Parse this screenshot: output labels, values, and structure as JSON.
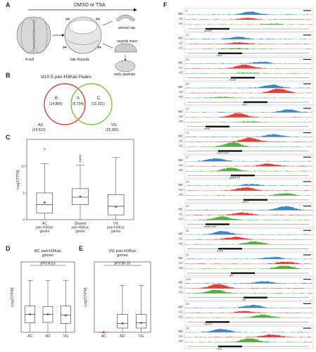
{
  "panels": {
    "A": {
      "letter": "A",
      "treatment": "DMSO or TSA",
      "stage": "4-cell",
      "late_blastula": "late blastula",
      "animal_cap": "animal cap",
      "vegetal_mass": "vegetal mass",
      "early_gastrula": "early gastrula"
    },
    "B": {
      "letter": "B",
      "title": "st10.5 pan-H3Kac Peaks",
      "left_circle": {
        "region_label": "B",
        "region_count": "(14,889)",
        "set_label": "AC",
        "set_total": "(24,613)",
        "color": "#e0413b"
      },
      "overlap": {
        "region_label": "A",
        "region_count": "(9,724)"
      },
      "right_circle": {
        "region_label": "C",
        "region_count": "(15,331)",
        "set_label": "VG",
        "set_total": "(25,055)",
        "color": "#7fc241"
      }
    },
    "C": {
      "letter": "C"
    },
    "D": {
      "letter": "D",
      "pvalue": "p=0.5013"
    },
    "E": {
      "letter": "E",
      "pvalue": "p=3.8e-15"
    },
    "F": {
      "letter": "F",
      "track_colors": {
        "WE": "#3f88c5",
        "AC": "#e0413b",
        "VG": "#55b043"
      },
      "tracks": [
        "WE",
        "AC",
        "VG"
      ],
      "loci": [
        {
          "num": "5",
          "gene": "pou5f3"
        },
        {
          "num": "27",
          "gene": "sox2"
        },
        {
          "num": "29",
          "gene": "foxa4"
        },
        {
          "num": "45",
          "gene": "otx2"
        },
        {
          "num": "23",
          "gene": "ventx"
        },
        {
          "num": "71",
          "gene": "cdx4 exo9"
        },
        {
          "num": "21",
          "gene": "gata4 5 6"
        },
        {
          "num": "20",
          "gene": "sox17"
        },
        {
          "num": "32",
          "gene": "foxa2 mix1"
        },
        {
          "num": "34",
          "gene": "nodal"
        },
        {
          "num": "22",
          "gene": "gsc"
        },
        {
          "num": "125",
          "gene": "mix"
        },
        {
          "num": "39",
          "gene": "sox17a"
        },
        {
          "num": "16",
          "gene": "vegt"
        }
      ]
    }
  },
  "chart_data": [
    {
      "type": "box",
      "panel": "C",
      "ylabel": "Log2(TPM)",
      "ylim": [
        0,
        15
      ],
      "yticks": [
        0,
        5,
        10
      ],
      "categories": [
        "AC\npan-H3Kac\ngenes",
        "Shared\npan-H3Kac\ngenes",
        "VG\npan-H3Kac\ngenes"
      ],
      "boxes": [
        {
          "q1": 1.2,
          "median": 2.8,
          "q3": 5.0,
          "whisker_low": 0,
          "whisker_high": 10.5,
          "mean": 3.2,
          "outliers": [
            13.2
          ]
        },
        {
          "q1": 2.8,
          "median": 4.2,
          "q3": 5.8,
          "whisker_low": 0,
          "whisker_high": 10.2,
          "mean": 4.3,
          "outliers": [
            10.8,
            11.1,
            11.4,
            11.7,
            12.0
          ]
        },
        {
          "q1": 0.9,
          "median": 2.5,
          "q3": 4.7,
          "whisker_low": 0,
          "whisker_high": 11.6,
          "mean": 2.4,
          "outliers": []
        }
      ]
    },
    {
      "type": "box",
      "panel": "D",
      "title": "AC pan-H3Kac\ngenes",
      "ylabel": "Log2(TPM)",
      "ylim": [
        0,
        15
      ],
      "categories": [
        "AC",
        "MZ",
        "VG"
      ],
      "boxes": [
        {
          "q1": 2.0,
          "median": 3.8,
          "q3": 5.6,
          "whisker_low": 0,
          "whisker_high": 11.0,
          "mean": 3.8
        },
        {
          "q1": 2.1,
          "median": 3.8,
          "q3": 5.5,
          "whisker_low": 0,
          "whisker_high": 11.0,
          "mean": 3.8
        },
        {
          "q1": 1.9,
          "median": 3.7,
          "q3": 5.6,
          "whisker_low": 0,
          "whisker_high": 11.0,
          "mean": 3.6
        }
      ]
    },
    {
      "type": "box",
      "panel": "E",
      "title": "VG pan-H3Kac\ngenes",
      "ylabel": "Log2(TPM)",
      "ylim": [
        0,
        15
      ],
      "categories": [
        "AC",
        "MZ",
        "VG"
      ],
      "boxes": [
        {
          "q1": 0,
          "median": 0,
          "q3": 0,
          "whisker_low": 0,
          "whisker_high": 0,
          "mean": 0,
          "flat": true
        },
        {
          "q1": 0.9,
          "median": 1.9,
          "q3": 3.8,
          "whisker_low": 0,
          "whisker_high": 10.0,
          "mean": 1.9
        },
        {
          "q1": 0.9,
          "median": 2.0,
          "q3": 3.8,
          "whisker_low": 0,
          "whisker_high": 10.0,
          "mean": 2.0
        }
      ]
    }
  ]
}
